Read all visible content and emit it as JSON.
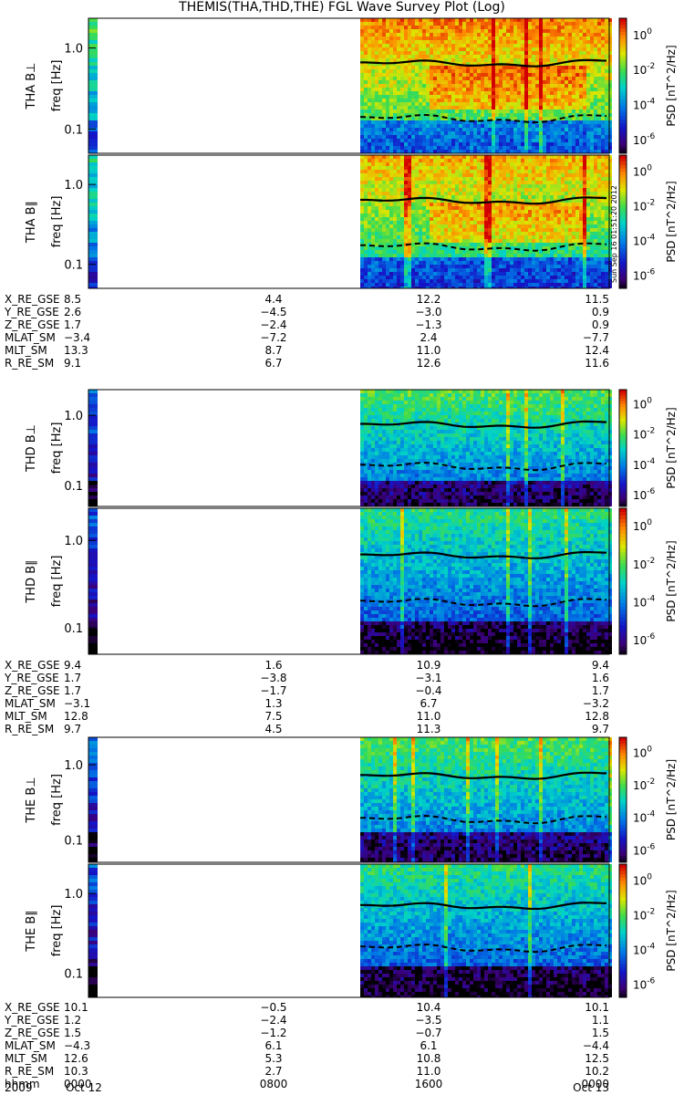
{
  "title": "THEMIS(THA,THD,THE) FGL Wave Survey Plot (Log)",
  "footer": {
    "date_left": "2009",
    "month_left": "Oct 12",
    "month_right": "Oct 13"
  },
  "colors": {
    "background": "#ffffff",
    "text": "#000000",
    "curve": "#000000"
  },
  "chart_data": {
    "type": "heatmap",
    "colorbar": {
      "label": "PSD [nT^2/Hz]",
      "ticks": [
        "10^0",
        "10^-2",
        "10^-4",
        "10^-6"
      ]
    },
    "y_ticks": [
      "1.0",
      "0.1"
    ],
    "panels": [
      {
        "label": "THA B⊥",
        "ylabel": "freq [Hz]",
        "level": 0.7,
        "solid_curve": 0.62,
        "dashed_curve": 0.13
      },
      {
        "label": "THA B∥",
        "ylabel": "freq [Hz]",
        "level": 0.65,
        "solid_curve": 0.6,
        "dashed_curve": 0.16
      },
      {
        "label": "THD B⊥",
        "ylabel": "freq [Hz]",
        "level": 0.45,
        "solid_curve": 0.7,
        "dashed_curve": 0.18
      },
      {
        "label": "THD B∥",
        "ylabel": "freq [Hz]",
        "level": 0.4,
        "solid_curve": 0.65,
        "dashed_curve": 0.19
      },
      {
        "label": "THE B⊥",
        "ylabel": "freq [Hz]",
        "level": 0.45,
        "solid_curve": 0.68,
        "dashed_curve": 0.18
      },
      {
        "label": "THE B∥",
        "ylabel": "freq [Hz]",
        "level": 0.4,
        "solid_curve": 0.67,
        "dashed_curve": 0.2
      }
    ],
    "ephemeris": [
      {
        "rows": [
          {
            "name": "X_RE_GSE",
            "vals": [
              "8.5",
              "4.4",
              "12.2",
              "11.5"
            ]
          },
          {
            "name": "Y_RE_GSE",
            "vals": [
              "2.6",
              "−4.5",
              "−3.0",
              "0.9"
            ]
          },
          {
            "name": "Z_RE_GSE",
            "vals": [
              "1.7",
              "−2.4",
              "−1.3",
              "0.9"
            ]
          },
          {
            "name": "MLAT_SM",
            "vals": [
              "−3.4",
              "−7.2",
              "2.4",
              "−7.7"
            ]
          },
          {
            "name": "MLT_SM",
            "vals": [
              "13.3",
              "8.7",
              "11.0",
              "12.4"
            ]
          },
          {
            "name": "R_RE_SM",
            "vals": [
              "9.1",
              "6.7",
              "12.6",
              "11.6"
            ]
          }
        ]
      },
      {
        "rows": [
          {
            "name": "X_RE_GSE",
            "vals": [
              "9.4",
              "1.6",
              "10.9",
              "9.4"
            ]
          },
          {
            "name": "Y_RE_GSE",
            "vals": [
              "1.7",
              "−3.8",
              "−3.1",
              "1.6"
            ]
          },
          {
            "name": "Z_RE_GSE",
            "vals": [
              "1.7",
              "−1.7",
              "−0.4",
              "1.7"
            ]
          },
          {
            "name": "MLAT_SM",
            "vals": [
              "−3.1",
              "1.3",
              "6.7",
              "−3.2"
            ]
          },
          {
            "name": "MLT_SM",
            "vals": [
              "12.8",
              "7.5",
              "11.0",
              "12.8"
            ]
          },
          {
            "name": "R_RE_SM",
            "vals": [
              "9.7",
              "4.5",
              "11.3",
              "9.7"
            ]
          }
        ]
      },
      {
        "rows": [
          {
            "name": "X_RE_GSE",
            "vals": [
              "10.1",
              "−0.5",
              "10.4",
              "10.1"
            ]
          },
          {
            "name": "Y_RE_GSE",
            "vals": [
              "1.2",
              "−2.4",
              "−3.5",
              "1.1"
            ]
          },
          {
            "name": "Z_RE_GSE",
            "vals": [
              "1.5",
              "−1.2",
              "−0.7",
              "1.5"
            ]
          },
          {
            "name": "MLAT_SM",
            "vals": [
              "−4.3",
              "6.1",
              "6.1",
              "−4.4"
            ]
          },
          {
            "name": "MLT_SM",
            "vals": [
              "12.6",
              "5.3",
              "10.8",
              "12.5"
            ]
          },
          {
            "name": "R_RE_SM",
            "vals": [
              "10.3",
              "2.7",
              "11.0",
              "10.2"
            ]
          },
          {
            "name": "hhmm",
            "vals": [
              "0000",
              "0800",
              "1600",
              "0000"
            ]
          }
        ]
      }
    ],
    "x_ticks": [
      "0000",
      "0800",
      "1600",
      "0000"
    ],
    "stamp": "Sun Sep 16 01:51:20 2012"
  }
}
